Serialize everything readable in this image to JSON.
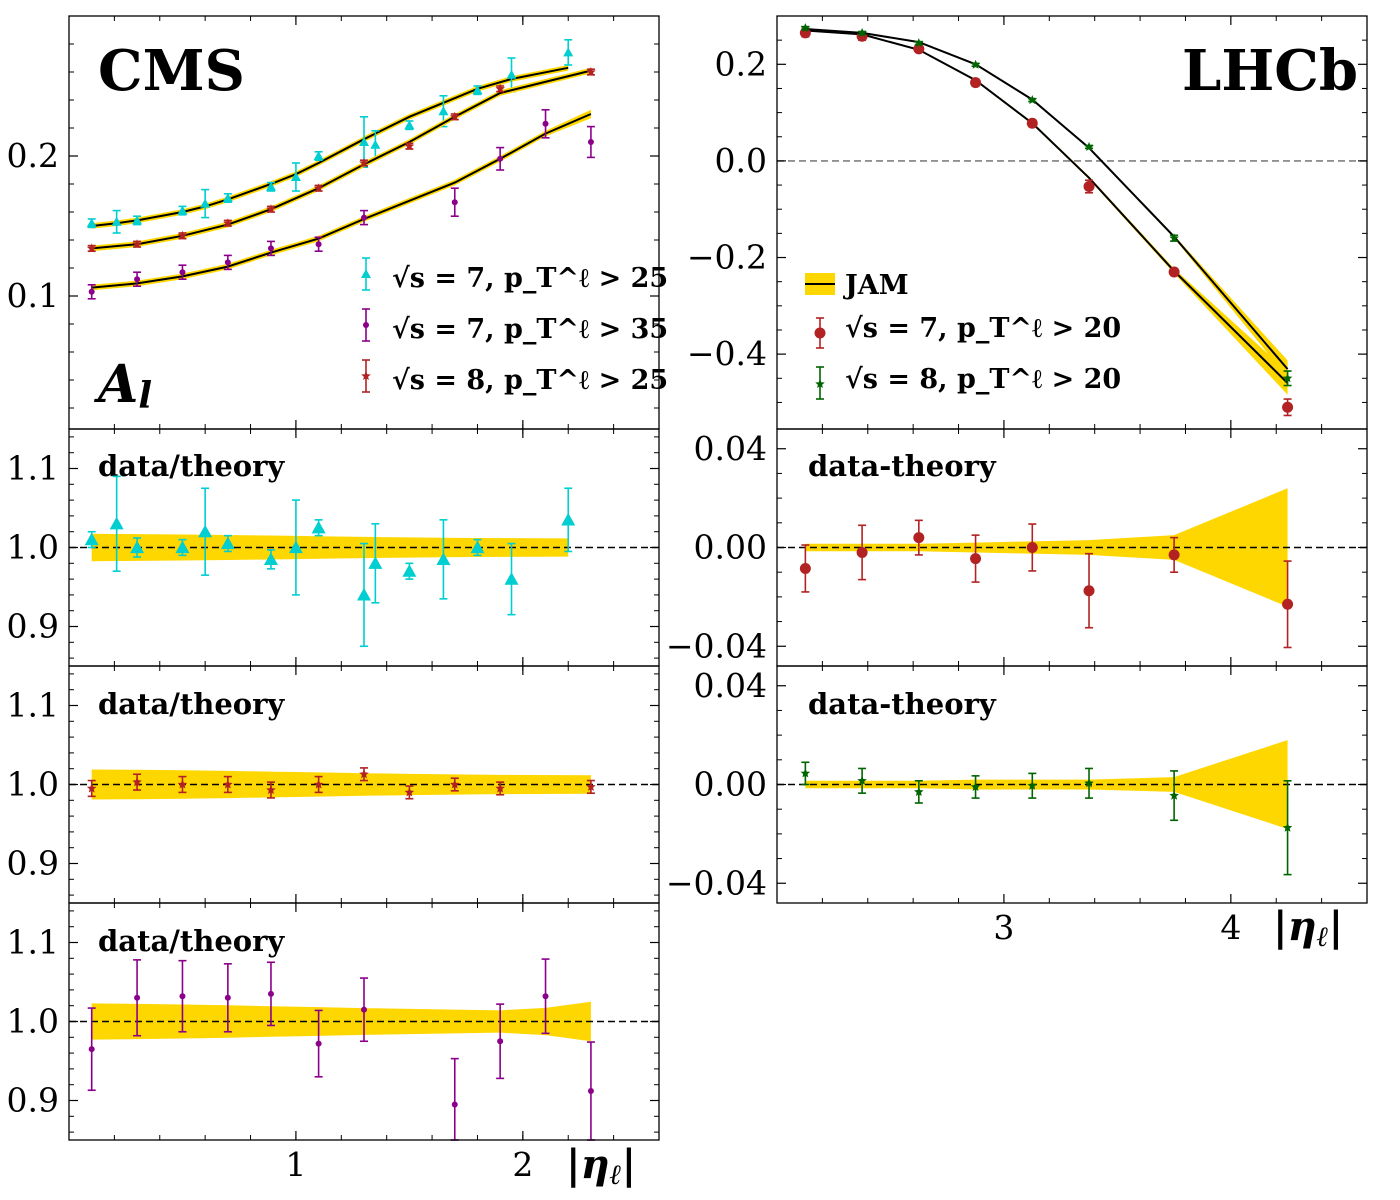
{
  "chart_data": [
    {
      "type": "scatter",
      "panel": "cms-asymmetry",
      "experiment": "CMS",
      "observable_symbol": "A",
      "observable_subscript": "l",
      "xlim": [
        0.0,
        2.6
      ],
      "ylim": [
        0.005,
        0.3
      ],
      "yticks": [
        "0.1",
        "0.2"
      ],
      "yticks_values": [
        0.1,
        0.2
      ],
      "legend_position": "lower-right",
      "theory_label": "JAM",
      "series": [
        {
          "name": "√s = 7, p_T^ℓ > 25",
          "sqrt_s": "7",
          "pt_cut": "25",
          "color": "#00CED1",
          "marker": "triangle",
          "x": [
            0.1,
            0.21,
            0.3,
            0.5,
            0.6,
            0.7,
            0.89,
            1.0,
            1.1,
            1.3,
            1.35,
            1.5,
            1.65,
            1.8,
            1.95,
            2.2
          ],
          "y": [
            0.152,
            0.153,
            0.154,
            0.161,
            0.166,
            0.17,
            0.178,
            0.185,
            0.2,
            0.21,
            0.208,
            0.222,
            0.232,
            0.247,
            0.258,
            0.274
          ],
          "err": [
            0.003,
            0.008,
            0.003,
            0.003,
            0.01,
            0.003,
            0.003,
            0.01,
            0.003,
            0.018,
            0.01,
            0.003,
            0.011,
            0.003,
            0.012,
            0.009
          ],
          "theory": [
            0.15,
            0.152,
            0.154,
            0.16,
            0.164,
            0.169,
            0.18,
            0.187,
            0.195,
            0.212,
            0.216,
            0.228,
            0.238,
            0.248,
            0.255,
            0.263
          ],
          "ratio": [
            1.01,
            1.03,
            1.0,
            1.0,
            1.02,
            1.005,
            0.985,
            1.0,
            1.025,
            0.94,
            0.98,
            0.97,
            0.985,
            1.0,
            0.96,
            1.035
          ],
          "ratio_err": [
            0.01,
            0.06,
            0.012,
            0.01,
            0.055,
            0.01,
            0.012,
            0.06,
            0.01,
            0.065,
            0.05,
            0.01,
            0.05,
            0.01,
            0.045,
            0.04
          ]
        },
        {
          "name": "√s = 7, p_T^ℓ > 35",
          "sqrt_s": "7",
          "pt_cut": "35",
          "color": "#8B008B",
          "marker": "dot",
          "x": [
            0.1,
            0.3,
            0.5,
            0.7,
            0.89,
            1.1,
            1.3,
            1.7,
            1.9,
            2.1,
            2.3
          ],
          "y": [
            0.103,
            0.112,
            0.117,
            0.124,
            0.134,
            0.137,
            0.156,
            0.167,
            0.198,
            0.223,
            0.21
          ],
          "err": [
            0.005,
            0.005,
            0.005,
            0.005,
            0.005,
            0.005,
            0.005,
            0.01,
            0.008,
            0.01,
            0.011
          ],
          "theory": [
            0.106,
            0.109,
            0.114,
            0.121,
            0.131,
            0.141,
            0.155,
            0.181,
            0.198,
            0.216,
            0.23
          ],
          "ratio": [
            0.965,
            1.03,
            1.032,
            1.03,
            1.035,
            0.972,
            1.015,
            0.895,
            0.975,
            1.032,
            0.912
          ],
          "ratio_err": [
            0.052,
            0.048,
            0.045,
            0.043,
            0.04,
            0.042,
            0.04,
            0.058,
            0.047,
            0.047,
            0.062
          ]
        },
        {
          "name": "√s = 8, p_T^ℓ > 25",
          "sqrt_s": "8",
          "pt_cut": "25",
          "color": "#B22222",
          "marker": "star",
          "x": [
            0.1,
            0.3,
            0.5,
            0.7,
            0.89,
            1.1,
            1.3,
            1.5,
            1.7,
            1.9,
            2.3
          ],
          "y": [
            0.134,
            0.137,
            0.143,
            0.152,
            0.162,
            0.177,
            0.195,
            0.207,
            0.228,
            0.248,
            0.26
          ],
          "err": [
            0.002,
            0.002,
            0.002,
            0.002,
            0.002,
            0.002,
            0.002,
            0.002,
            0.002,
            0.002,
            0.002
          ],
          "theory": [
            0.134,
            0.137,
            0.143,
            0.151,
            0.162,
            0.177,
            0.194,
            0.21,
            0.228,
            0.245,
            0.261
          ],
          "ratio": [
            0.995,
            1.003,
            1.0,
            1.0,
            0.993,
            1.0,
            1.013,
            0.99,
            1.0,
            0.995,
            0.997
          ],
          "ratio_err": [
            0.01,
            0.01,
            0.01,
            0.01,
            0.01,
            0.01,
            0.008,
            0.008,
            0.008,
            0.008,
            0.008
          ]
        }
      ],
      "theory_band_width": [
        [
          0.002,
          0.002,
          0.002,
          0.002,
          0.002,
          0.002,
          0.002,
          0.002,
          0.002,
          0.002,
          0.002,
          0.002,
          0.002,
          0.002,
          0.002,
          0.002
        ],
        [
          0.002,
          0.002,
          0.002,
          0.002,
          0.002,
          0.002,
          0.002,
          0.002,
          0.002,
          0.002,
          0.003
        ],
        [
          0.002,
          0.002,
          0.002,
          0.002,
          0.002,
          0.002,
          0.002,
          0.002,
          0.002,
          0.002,
          0.002
        ]
      ]
    },
    {
      "type": "scatter",
      "panel": "lhcb-asymmetry",
      "experiment": "LHCb",
      "xlim": [
        2.0,
        4.6
      ],
      "ylim": [
        -0.555,
        0.3
      ],
      "xticks": [
        "3",
        "4"
      ],
      "xticks_values": [
        3,
        4
      ],
      "xlabel_symbol": "η",
      "xlabel_subscript": "ℓ",
      "yticks": [
        "0.2",
        "0.0",
        "−0.2",
        "−0.4"
      ],
      "yticks_values": [
        0.2,
        0.0,
        -0.2,
        -0.4
      ],
      "legend_position": "lower-left",
      "theory_label": "JAM",
      "series": [
        {
          "name": "√s = 7, p_T^ℓ > 20",
          "sqrt_s": "7",
          "pt_cut": "20",
          "color": "#B22222",
          "marker": "dot",
          "x": [
            2.125,
            2.375,
            2.625,
            2.875,
            3.125,
            3.375,
            3.75,
            4.25
          ],
          "y": [
            0.265,
            0.258,
            0.232,
            0.162,
            0.078,
            -0.053,
            -0.23,
            -0.51
          ],
          "err": [
            0.008,
            0.008,
            0.006,
            0.007,
            0.007,
            0.013,
            0.007,
            0.017
          ],
          "theory": [
            0.27,
            0.262,
            0.23,
            0.167,
            0.078,
            -0.035,
            -0.228,
            -0.46
          ],
          "diff": [
            -0.0085,
            -0.002,
            0.004,
            -0.0045,
            0.0,
            -0.0175,
            -0.003,
            -0.023
          ],
          "diff_err": [
            0.0095,
            0.011,
            0.007,
            0.0095,
            0.0095,
            0.015,
            0.007,
            0.0175
          ],
          "band": [
            0.0015,
            0.0015,
            0.0015,
            0.002,
            0.0025,
            0.003,
            0.005,
            0.024
          ]
        },
        {
          "name": "√s = 8, p_T^ℓ > 20",
          "sqrt_s": "8",
          "pt_cut": "20",
          "color": "#006400",
          "marker": "star",
          "x": [
            2.125,
            2.375,
            2.625,
            2.875,
            3.125,
            3.375,
            3.75,
            4.25
          ],
          "y": [
            0.275,
            0.265,
            0.244,
            0.199,
            0.126,
            0.029,
            -0.16,
            -0.45
          ],
          "err": [
            0.003,
            0.003,
            0.003,
            0.003,
            0.003,
            0.003,
            0.006,
            0.015
          ],
          "theory": [
            0.273,
            0.265,
            0.246,
            0.2,
            0.127,
            0.027,
            -0.157,
            -0.431
          ],
          "diff": [
            0.0045,
            0.0015,
            -0.003,
            -0.001,
            -0.0005,
            0.0005,
            -0.0045,
            -0.0175
          ],
          "diff_err": [
            0.0045,
            0.005,
            0.0045,
            0.0045,
            0.005,
            0.006,
            0.01,
            0.019
          ],
          "band": [
            0.0015,
            0.0015,
            0.0015,
            0.002,
            0.002,
            0.002,
            0.003,
            0.018
          ]
        }
      ]
    },
    {
      "type": "scatter",
      "panel": "cms-ratio-panels",
      "label": "data/theory",
      "ylim": [
        0.85,
        1.15
      ],
      "yticks": [
        "0.9",
        "1.0",
        "1.1"
      ],
      "yticks_values": [
        0.9,
        1.0,
        1.1
      ],
      "xticks": [
        "1",
        "2"
      ],
      "xticks_values": [
        1,
        2
      ],
      "xlabel_symbol": "η",
      "xlabel_subscript": "ℓ"
    },
    {
      "type": "scatter",
      "panel": "lhcb-difference-panels",
      "label": "data-theory",
      "ylim": [
        -0.048,
        0.048
      ],
      "yticks": [
        "0.04",
        "0.00",
        "−0.04"
      ],
      "yticks_values": [
        0.04,
        0.0,
        -0.04
      ]
    }
  ],
  "colors": {
    "band": "#FFD700",
    "theory_line": "#000000",
    "zero_line": "#808080",
    "cyan": "#00CED1",
    "purple": "#8B008B",
    "red": "#B22222",
    "green": "#006400"
  }
}
